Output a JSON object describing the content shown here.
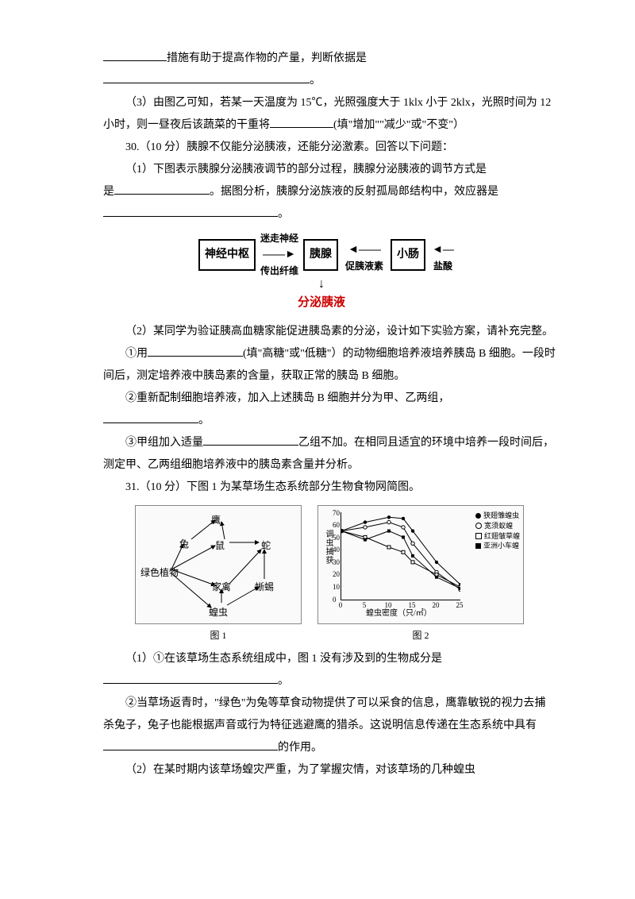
{
  "colors": {
    "text": "#000000",
    "background": "#ffffff",
    "accent_red": "#cc0000",
    "figure_border": "#888888",
    "figure_bg": "#fafafa"
  },
  "typography": {
    "body_family": "SimSun",
    "body_size_pt": 10.5,
    "line_height": 2.0
  },
  "p1a": "措施有助于提高作物的产量，判断依据是",
  "p1b": "。",
  "p2": "（3）由图乙可知，若某一天温度为 15℃，光照强度大于 1klx 小于 2klx，光照时间为 12 小时，则一昼夜后该蔬菜的干重将",
  "p2_tail": "(填\"增加\"\"减少\"或\"不变\"）",
  "q30_head": "30.（10 分）胰腺不仅能分泌胰液，还能分泌激素。回答以下问题：",
  "q30_1a": "（1）下图表示胰腺分泌胰液调节的部分过程，胰腺分泌胰液的调节方式是",
  "q30_1b": "。据图分析，胰腺分泌族液的反射孤局郎结构中，效应器是",
  "q30_1c": "。",
  "diagram1": {
    "box1": "神经中枢",
    "arrow1_top": "迷走神经",
    "arrow1_bot": "传出纤维",
    "box2": "胰腺",
    "arrow2_label": "促胰液素",
    "box3": "小肠",
    "arrow3_label": "盐酸",
    "down_label": "分泌胰液"
  },
  "q30_2": "（2）某同学为验证胰高血糖家能促进胰岛素的分泌，设计如下实验方案，请补充完整。",
  "q30_2_1a": "①用",
  "q30_2_1b": "(填\"高糖\"或\"低糖\"）的动物细胞培养液培养胰岛 B 细胞。一段时间后，测定培养液中胰岛素的含量，获取正常的胰岛 B 细胞。",
  "q30_2_2": "②重新配制细胞培养液，加入上述胰岛 B 细胞并分为甲、乙两组，",
  "q30_2_2b": "。",
  "q30_2_3a": "③甲组加入适量",
  "q30_2_3b": "乙组不加。在相同且适宜的环境中培养一段时间后，测定甲、乙两组细胞培养液中的胰岛素含量并分析。",
  "q31_head": "31.（10 分）下图 1 为某草场生态系统部分生物食物网简图。",
  "fig1": {
    "caption": "图  1",
    "nodes": {
      "ying": "鹰",
      "tu": "兔",
      "shu": "鼠",
      "she": "蛇",
      "plant": "绿色植物",
      "jiaqin": "家禽",
      "xiyi": "蜥蜴",
      "huangchong": "蝗虫"
    },
    "edges": [
      [
        "plant",
        "tu"
      ],
      [
        "plant",
        "shu"
      ],
      [
        "plant",
        "jiaqin"
      ],
      [
        "plant",
        "huangchong"
      ],
      [
        "tu",
        "ying"
      ],
      [
        "shu",
        "ying"
      ],
      [
        "shu",
        "she"
      ],
      [
        "jiaqin",
        "she"
      ],
      [
        "huangchong",
        "xiyi"
      ],
      [
        "huangchong",
        "jiaqin"
      ],
      [
        "xiyi",
        "she"
      ]
    ]
  },
  "fig2": {
    "caption": "图  2",
    "type": "line",
    "ylabel": "调虫捕获",
    "xlabel": "蝗虫密度（只/㎡）",
    "ylim": [
      0,
      70
    ],
    "ytick_step": 10,
    "xlim": [
      0,
      25
    ],
    "xtick_step": 5,
    "legend": [
      "狭翅雏蝗虫",
      "宽须蚁蝗",
      "红翅皱草蝗",
      "亚洲小车蝗"
    ],
    "legend_markers": [
      "filled-circle",
      "open-circle",
      "open-square",
      "filled-square"
    ],
    "series_colors": [
      "#000000",
      "#000000",
      "#000000",
      "#000000"
    ],
    "series": {
      "狭翅雏蝗虫": [
        [
          0,
          55
        ],
        [
          5,
          62
        ],
        [
          10,
          66
        ],
        [
          13,
          65
        ],
        [
          15,
          55
        ],
        [
          20,
          30
        ],
        [
          25,
          12
        ]
      ],
      "宽须蚁蝗": [
        [
          0,
          55
        ],
        [
          5,
          58
        ],
        [
          10,
          62
        ],
        [
          13,
          58
        ],
        [
          15,
          45
        ],
        [
          20,
          22
        ],
        [
          25,
          8
        ]
      ],
      "红翅皱草蝗": [
        [
          0,
          55
        ],
        [
          5,
          50
        ],
        [
          10,
          42
        ],
        [
          13,
          38
        ],
        [
          15,
          30
        ],
        [
          20,
          20
        ],
        [
          25,
          10
        ]
      ],
      "亚洲小车蝗": [
        [
          0,
          55
        ],
        [
          5,
          48
        ],
        [
          10,
          55
        ],
        [
          13,
          50
        ],
        [
          15,
          35
        ],
        [
          20,
          18
        ],
        [
          25,
          9
        ]
      ]
    }
  },
  "q31_1": "（1）①在该草场生态系统组成中，图 1 没有涉及到的生物成分是",
  "q31_1b": "。",
  "q31_1_2a": "②当草场返青时，\"绿色\"为兔等草食动物提供了可以采食的信息，鹰靠敏锐的视力去捕杀兔子，兔子也能根据声音或行为特征逃避鹰的猎杀。这说明信息传递在生态系统中具有",
  "q31_1_2b": "的作用。",
  "q31_2": "（2）在某时期内该草场蝗灾严重，为了掌握灾情，对该草场的几种蝗虫"
}
